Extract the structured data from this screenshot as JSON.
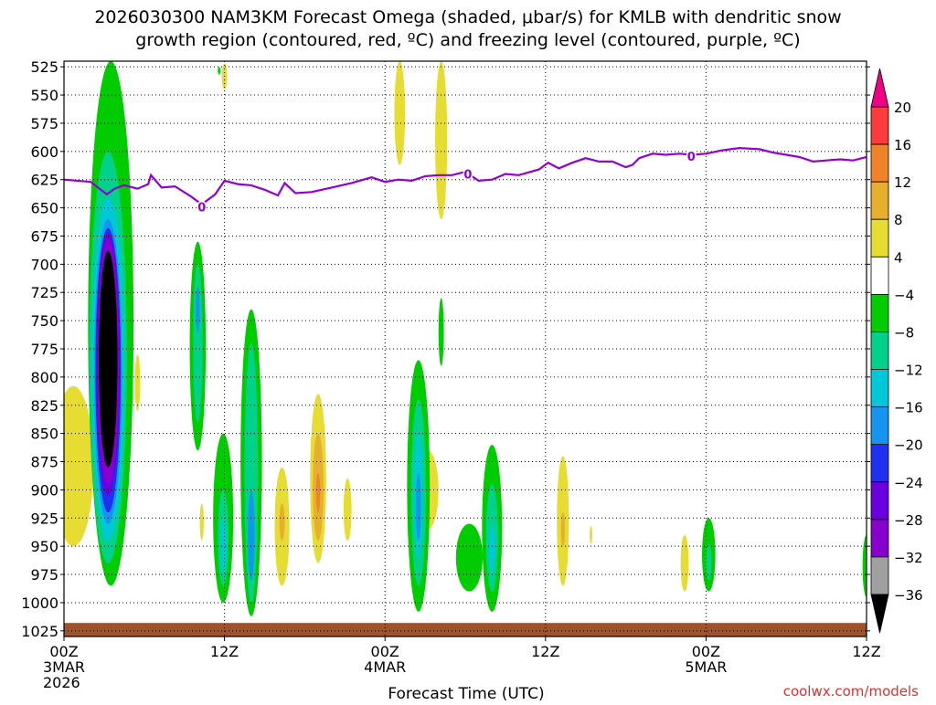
{
  "chart_data": {
    "type": "heatmap",
    "title_line1": "2026030300 NAM3KM Forecast Omega (shaded, μbar/s) for KMLB with dendritic snow",
    "title_line2": "growth region (contoured, red, ºC) and freezing level (contoured, purple, ºC)",
    "xlabel": "Forecast Time (UTC)",
    "credit": "coolwx.com/models",
    "x_ticks": [
      {
        "hour": 0,
        "lines": [
          "00Z",
          "3MAR",
          "2026"
        ]
      },
      {
        "hour": 12,
        "lines": [
          "12Z"
        ]
      },
      {
        "hour": 24,
        "lines": [
          "00Z",
          "4MAR"
        ]
      },
      {
        "hour": 36,
        "lines": [
          "12Z"
        ]
      },
      {
        "hour": 48,
        "lines": [
          "00Z",
          "5MAR"
        ]
      },
      {
        "hour": 60,
        "lines": [
          "12Z"
        ]
      }
    ],
    "xlim": [
      0,
      60
    ],
    "ylim": [
      1030,
      520
    ],
    "y_ticks": [
      525,
      550,
      575,
      600,
      625,
      650,
      675,
      700,
      725,
      750,
      775,
      800,
      825,
      850,
      875,
      900,
      925,
      950,
      975,
      1000,
      1025
    ],
    "grid": true,
    "freezing_level": {
      "label": "0",
      "label_points": [
        [
          10.3,
          649
        ],
        [
          30.2,
          620
        ],
        [
          46.9,
          604
        ]
      ],
      "points": [
        [
          0,
          625
        ],
        [
          2,
          627
        ],
        [
          3.2,
          638
        ],
        [
          3.8,
          633
        ],
        [
          4.5,
          630
        ],
        [
          5.5,
          633
        ],
        [
          6.3,
          629
        ],
        [
          6.5,
          621
        ],
        [
          7.3,
          632
        ],
        [
          8.3,
          631
        ],
        [
          9.5,
          640
        ],
        [
          10.3,
          647
        ],
        [
          11.3,
          638
        ],
        [
          12,
          626
        ],
        [
          13,
          629
        ],
        [
          14,
          630
        ],
        [
          15,
          634
        ],
        [
          16,
          639
        ],
        [
          16.5,
          628
        ],
        [
          17.3,
          637
        ],
        [
          18.5,
          636
        ],
        [
          20,
          632
        ],
        [
          21.5,
          628
        ],
        [
          23,
          623
        ],
        [
          24,
          627
        ],
        [
          25,
          625
        ],
        [
          26,
          626
        ],
        [
          27,
          622
        ],
        [
          28,
          621
        ],
        [
          29,
          621
        ],
        [
          30,
          618
        ],
        [
          31,
          626
        ],
        [
          32,
          625
        ],
        [
          33,
          620
        ],
        [
          34,
          621
        ],
        [
          35.5,
          616
        ],
        [
          36.2,
          610
        ],
        [
          37,
          615
        ],
        [
          38,
          610
        ],
        [
          39,
          606
        ],
        [
          40,
          609
        ],
        [
          41,
          609
        ],
        [
          42,
          614
        ],
        [
          42.5,
          612
        ],
        [
          43,
          606
        ],
        [
          44,
          602
        ],
        [
          45,
          603
        ],
        [
          46,
          602
        ],
        [
          47,
          603
        ],
        [
          48,
          602
        ],
        [
          49.2,
          599
        ],
        [
          50.5,
          597
        ],
        [
          52,
          598
        ],
        [
          53,
          601
        ],
        [
          54,
          603
        ],
        [
          55,
          605
        ],
        [
          56,
          609
        ],
        [
          57,
          608
        ],
        [
          58,
          607
        ],
        [
          59,
          608
        ],
        [
          60,
          605
        ]
      ]
    },
    "shaded_features": [
      {
        "hour": 0.7,
        "p_top": 808,
        "p_bot": 950,
        "w": 3.0,
        "level": 4
      },
      {
        "hour": 3.5,
        "p_top": 520,
        "p_bot": 985,
        "w": 3.4,
        "level": -8
      },
      {
        "hour": 3.3,
        "p_top": 600,
        "p_bot": 965,
        "w": 2.8,
        "level": -12
      },
      {
        "hour": 3.3,
        "p_top": 640,
        "p_bot": 945,
        "w": 2.4,
        "level": -16
      },
      {
        "hour": 3.3,
        "p_top": 660,
        "p_bot": 930,
        "w": 2.1,
        "level": -20
      },
      {
        "hour": 3.3,
        "p_top": 668,
        "p_bot": 920,
        "w": 1.9,
        "level": -24
      },
      {
        "hour": 3.3,
        "p_top": 672,
        "p_bot": 905,
        "w": 1.8,
        "level": -28
      },
      {
        "hour": 3.3,
        "p_top": 678,
        "p_bot": 895,
        "w": 1.6,
        "level": -32
      },
      {
        "hour": 3.3,
        "p_top": 688,
        "p_bot": 880,
        "w": 1.4,
        "level": -36
      },
      {
        "hour": 5.5,
        "p_top": 780,
        "p_bot": 830,
        "w": 0.4,
        "level": 4
      },
      {
        "hour": 10.0,
        "p_top": 680,
        "p_bot": 865,
        "w": 1.2,
        "level": -8
      },
      {
        "hour": 10.0,
        "p_top": 700,
        "p_bot": 840,
        "w": 0.7,
        "level": -12
      },
      {
        "hour": 10.0,
        "p_top": 720,
        "p_bot": 760,
        "w": 0.3,
        "level": -20
      },
      {
        "hour": 12.0,
        "p_top": 522,
        "p_bot": 545,
        "w": 0.4,
        "level": 4
      },
      {
        "hour": 11.6,
        "p_top": 525,
        "p_bot": 532,
        "w": 0.2,
        "level": -8
      },
      {
        "hour": 10.3,
        "p_top": 912,
        "p_bot": 945,
        "w": 0.3,
        "level": 4
      },
      {
        "hour": 11.9,
        "p_top": 850,
        "p_bot": 1000,
        "w": 1.5,
        "level": -8
      },
      {
        "hour": 11.9,
        "p_top": 900,
        "p_bot": 985,
        "w": 0.8,
        "level": -12
      },
      {
        "hour": 11.9,
        "p_top": 925,
        "p_bot": 975,
        "w": 0.4,
        "level": -16
      },
      {
        "hour": 14.0,
        "p_top": 740,
        "p_bot": 1012,
        "w": 1.6,
        "level": -8
      },
      {
        "hour": 14.0,
        "p_top": 770,
        "p_bot": 1000,
        "w": 1.0,
        "level": -12
      },
      {
        "hour": 14.0,
        "p_top": 900,
        "p_bot": 980,
        "w": 0.5,
        "level": -20
      },
      {
        "hour": 16.3,
        "p_top": 880,
        "p_bot": 985,
        "w": 1.1,
        "level": 4
      },
      {
        "hour": 16.3,
        "p_top": 912,
        "p_bot": 945,
        "w": 0.4,
        "level": 8
      },
      {
        "hour": 19.0,
        "p_top": 815,
        "p_bot": 965,
        "w": 1.2,
        "level": 4
      },
      {
        "hour": 19.0,
        "p_top": 850,
        "p_bot": 945,
        "w": 0.8,
        "level": 8
      },
      {
        "hour": 19.0,
        "p_top": 885,
        "p_bot": 920,
        "w": 0.3,
        "level": 12
      },
      {
        "hour": 21.2,
        "p_top": 890,
        "p_bot": 945,
        "w": 0.6,
        "level": 4
      },
      {
        "hour": 25.1,
        "p_top": 520,
        "p_bot": 612,
        "w": 0.8,
        "level": 4
      },
      {
        "hour": 28.2,
        "p_top": 520,
        "p_bot": 660,
        "w": 0.9,
        "level": 4
      },
      {
        "hour": 27.2,
        "p_top": 865,
        "p_bot": 935,
        "w": 1.6,
        "level": 4
      },
      {
        "hour": 26.4,
        "p_top": 840,
        "p_bot": 870,
        "w": 0.5,
        "level": 4
      },
      {
        "hour": 26.5,
        "p_top": 785,
        "p_bot": 1008,
        "w": 1.7,
        "level": -8
      },
      {
        "hour": 26.5,
        "p_top": 820,
        "p_bot": 985,
        "w": 1.1,
        "level": -12
      },
      {
        "hour": 26.5,
        "p_top": 850,
        "p_bot": 960,
        "w": 0.6,
        "level": -16
      },
      {
        "hour": 26.5,
        "p_top": 885,
        "p_bot": 945,
        "w": 0.4,
        "level": -20
      },
      {
        "hour": 28.2,
        "p_top": 730,
        "p_bot": 790,
        "w": 0.4,
        "level": -8
      },
      {
        "hour": 30.3,
        "p_top": 930,
        "p_bot": 990,
        "w": 2.0,
        "level": -8
      },
      {
        "hour": 32.0,
        "p_top": 860,
        "p_bot": 1008,
        "w": 1.5,
        "level": -8
      },
      {
        "hour": 32.0,
        "p_top": 895,
        "p_bot": 990,
        "w": 0.9,
        "level": -12
      },
      {
        "hour": 32.0,
        "p_top": 930,
        "p_bot": 975,
        "w": 0.4,
        "level": -16
      },
      {
        "hour": 37.3,
        "p_top": 870,
        "p_bot": 985,
        "w": 0.9,
        "level": 4
      },
      {
        "hour": 37.3,
        "p_top": 920,
        "p_bot": 950,
        "w": 0.3,
        "level": 8
      },
      {
        "hour": 39.4,
        "p_top": 932,
        "p_bot": 948,
        "w": 0.2,
        "level": 4
      },
      {
        "hour": 46.4,
        "p_top": 940,
        "p_bot": 990,
        "w": 0.6,
        "level": 4
      },
      {
        "hour": 48.2,
        "p_top": 925,
        "p_bot": 990,
        "w": 1.0,
        "level": -8
      },
      {
        "hour": 48.2,
        "p_top": 948,
        "p_bot": 980,
        "w": 0.4,
        "level": -12
      },
      {
        "hour": 60.0,
        "p_top": 940,
        "p_bot": 995,
        "w": 0.6,
        "level": -8
      }
    ],
    "terrain": {
      "p_top": 1018,
      "color": "#a0522d"
    },
    "colorbar": {
      "levels": [
        -36,
        -32,
        -28,
        -24,
        -20,
        -16,
        -12,
        -8,
        -4,
        4,
        8,
        12,
        16,
        20
      ],
      "colors": [
        "#000000",
        "#a0a0a0",
        "#8800cc",
        "#6a00e0",
        "#2030f0",
        "#1496f0",
        "#00c8d8",
        "#00d28c",
        "#00cc00",
        "#ffffff",
        "#e6dc32",
        "#e6af2d",
        "#f08228",
        "#fa3c3c",
        "#f00082"
      ],
      "tick_labels": [
        "20",
        "16",
        "12",
        "8",
        "4",
        "−4",
        "−8",
        "−12",
        "−16",
        "−20",
        "−24",
        "−28",
        "−32",
        "−36"
      ]
    }
  }
}
